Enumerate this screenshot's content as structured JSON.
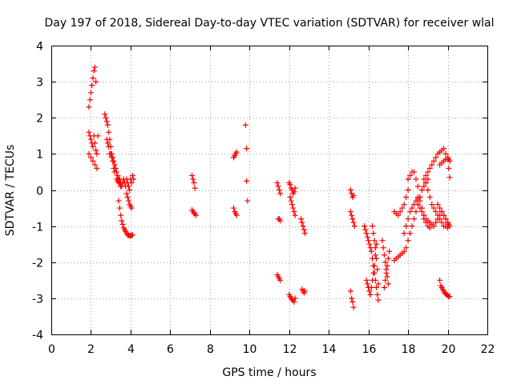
{
  "chart_data": {
    "type": "scatter",
    "title": "Day 197 of 2018, Sidereal Day-to-day VTEC variation (SDTVAR) for receiver wlal",
    "xlabel": "GPS time / hours",
    "ylabel": "SDTVAR / TECUs",
    "xlim": [
      0,
      22
    ],
    "ylim": [
      -4,
      4
    ],
    "xticks": [
      0,
      2,
      4,
      6,
      8,
      10,
      12,
      14,
      16,
      18,
      20,
      22
    ],
    "yticks": [
      -4,
      -3,
      -2,
      -1,
      0,
      1,
      2,
      3,
      4
    ],
    "grid": true,
    "marker": "+",
    "color": "#ff0000",
    "series": [
      {
        "name": "SDTVAR",
        "segments": [
          {
            "x": [
              1.9,
              1.95,
              2.0,
              2.05,
              2.1,
              2.15,
              2.2,
              2.25
            ],
            "y": [
              2.3,
              2.5,
              2.7,
              2.9,
              3.1,
              3.3,
              3.4,
              3.0
            ]
          },
          {
            "x": [
              1.9,
              1.95,
              2.0,
              2.05,
              2.1,
              2.15,
              2.2,
              2.25,
              2.3,
              2.35
            ],
            "y": [
              1.6,
              1.5,
              1.4,
              1.3,
              1.2,
              1.5,
              1.3,
              1.1,
              1.0,
              1.5
            ]
          },
          {
            "x": [
              1.9,
              2.0,
              2.1,
              2.2,
              2.3
            ],
            "y": [
              1.0,
              0.9,
              0.8,
              0.7,
              0.6
            ]
          },
          {
            "x": [
              2.7,
              2.75,
              2.8,
              2.85,
              2.9,
              2.95,
              3.0,
              3.05,
              3.1,
              3.15,
              3.2,
              3.25,
              3.3,
              3.35,
              3.4,
              3.45,
              3.5
            ],
            "y": [
              2.1,
              2.0,
              1.9,
              1.8,
              1.6,
              1.4,
              1.2,
              1.0,
              0.9,
              0.8,
              0.7,
              0.6,
              0.5,
              0.4,
              0.3,
              0.2,
              0.1
            ]
          },
          {
            "x": [
              2.8,
              2.85,
              2.9,
              2.95,
              3.0,
              3.05,
              3.1,
              3.15,
              3.2
            ],
            "y": [
              1.4,
              1.3,
              1.2,
              1.0,
              1.0,
              0.9,
              0.8,
              0.6,
              0.5
            ]
          },
          {
            "x": [
              3.3,
              3.35,
              3.4,
              3.45,
              3.5,
              3.55,
              3.6,
              3.65,
              3.7,
              3.75,
              3.8,
              3.85,
              3.9,
              3.95,
              4.0,
              4.05,
              4.1,
              4.15
            ],
            "y": [
              0.3,
              0.25,
              0.2,
              0.3,
              0.2,
              0.1,
              0.2,
              0.3,
              0.2,
              0.1,
              0.3,
              0.2,
              0.1,
              0.0,
              0.3,
              0.2,
              0.4,
              0.3
            ]
          },
          {
            "x": [
              3.4,
              3.45,
              3.5,
              3.55,
              3.6,
              3.65,
              3.7,
              3.75,
              3.8,
              3.85,
              3.9,
              3.95,
              4.0,
              4.05,
              4.1
            ],
            "y": [
              -0.3,
              -0.5,
              -0.7,
              -0.85,
              -0.95,
              -1.05,
              -1.1,
              -1.15,
              -1.2,
              -1.25,
              -1.25,
              -1.27,
              -1.27,
              -1.25,
              -1.25
            ]
          },
          {
            "x": [
              3.8,
              3.85,
              3.9,
              3.95,
              4.0,
              4.05
            ],
            "y": [
              -0.1,
              -0.2,
              -0.3,
              -0.4,
              -0.45,
              -0.5
            ]
          },
          {
            "x": [
              7.1,
              7.15,
              7.2,
              7.25
            ],
            "y": [
              0.4,
              0.3,
              0.2,
              0.05
            ]
          },
          {
            "x": [
              7.1,
              7.15,
              7.2,
              7.25,
              7.3
            ],
            "y": [
              -0.55,
              -0.6,
              -0.65,
              -0.65,
              -0.7
            ]
          },
          {
            "x": [
              9.2,
              9.25,
              9.3,
              9.35
            ],
            "y": [
              0.9,
              0.95,
              1.0,
              1.05
            ]
          },
          {
            "x": [
              9.2,
              9.25,
              9.3,
              9.35
            ],
            "y": [
              -0.5,
              -0.6,
              -0.65,
              -0.7
            ]
          },
          {
            "x": [
              9.8,
              9.85,
              9.85,
              9.9
            ],
            "y": [
              1.8,
              1.15,
              0.25,
              -0.3
            ]
          },
          {
            "x": [
              11.4,
              11.45,
              11.5,
              11.55
            ],
            "y": [
              0.2,
              0.1,
              0.0,
              -0.1
            ]
          },
          {
            "x": [
              11.45,
              11.5,
              11.55
            ],
            "y": [
              -0.8,
              -0.8,
              -0.85
            ]
          },
          {
            "x": [
              11.4,
              11.45,
              11.5,
              11.55
            ],
            "y": [
              -2.35,
              -2.4,
              -2.45,
              -2.5
            ]
          },
          {
            "x": [
              12.0,
              12.05,
              12.1,
              12.15,
              12.2,
              12.25,
              12.3
            ],
            "y": [
              0.2,
              0.15,
              0.05,
              0.0,
              -0.1,
              -0.05,
              0.05
            ]
          },
          {
            "x": [
              12.05,
              12.1,
              12.15,
              12.2,
              12.25,
              12.3
            ],
            "y": [
              -0.2,
              -0.3,
              -0.4,
              -0.5,
              -0.6,
              -0.7
            ]
          },
          {
            "x": [
              12.0,
              12.05,
              12.1,
              12.15,
              12.2,
              12.25,
              12.3
            ],
            "y": [
              -2.9,
              -2.95,
              -3.0,
              -3.05,
              -3.05,
              -3.1,
              -3.0
            ]
          },
          {
            "x": [
              12.6,
              12.65,
              12.7,
              12.75,
              12.8
            ],
            "y": [
              -0.8,
              -0.9,
              -1.0,
              -1.1,
              -1.2
            ]
          },
          {
            "x": [
              12.65,
              12.7,
              12.75,
              12.8
            ],
            "y": [
              -2.75,
              -2.8,
              -2.85,
              -2.8
            ]
          },
          {
            "x": [
              15.1,
              15.15,
              15.2,
              15.25
            ],
            "y": [
              0.0,
              -0.1,
              -0.2,
              -0.15
            ]
          },
          {
            "x": [
              15.1,
              15.15,
              15.2,
              15.25,
              15.3
            ],
            "y": [
              -0.6,
              -0.7,
              -0.8,
              -0.9,
              -1.0
            ]
          },
          {
            "x": [
              15.1,
              15.15,
              15.2,
              15.25
            ],
            "y": [
              -2.8,
              -3.0,
              -3.1,
              -3.25
            ]
          },
          {
            "x": [
              15.8,
              15.85,
              15.9,
              15.95,
              16.0,
              16.05,
              16.1,
              16.15,
              16.2,
              16.25,
              16.3,
              16.35,
              16.4,
              16.45,
              16.5
            ],
            "y": [
              -1.0,
              -1.1,
              -1.2,
              -1.3,
              -1.4,
              -1.5,
              -1.6,
              -1.7,
              -1.9,
              -2.1,
              -2.3,
              -2.5,
              -2.7,
              -2.9,
              -3.05
            ]
          },
          {
            "x": [
              15.9,
              15.95,
              16.0,
              16.05,
              16.1,
              16.15,
              16.2,
              16.25,
              16.3,
              16.35,
              16.4
            ],
            "y": [
              -2.5,
              -2.6,
              -2.7,
              -2.8,
              -2.9,
              -2.7,
              -2.5,
              -2.3,
              -2.1,
              -1.8,
              -1.5
            ]
          },
          {
            "x": [
              16.2,
              16.25,
              16.3,
              16.35,
              16.4,
              16.45,
              16.5
            ],
            "y": [
              -1.0,
              -1.2,
              -1.4,
              -1.6,
              -1.9,
              -2.2,
              -2.6
            ]
          },
          {
            "x": [
              16.7,
              16.75,
              16.8,
              16.85,
              16.9,
              16.95,
              17.0
            ],
            "y": [
              -1.4,
              -1.6,
              -1.8,
              -2.0,
              -2.2,
              -2.4,
              -2.6
            ]
          },
          {
            "x": [
              16.8,
              16.85,
              16.9,
              16.95,
              17.0,
              17.05
            ],
            "y": [
              -2.7,
              -2.5,
              -2.3,
              -2.1,
              -1.9,
              -1.7
            ]
          },
          {
            "x": [
              17.3,
              17.4,
              17.5,
              17.6,
              17.7,
              17.8,
              17.9,
              18.0,
              18.1,
              18.2,
              18.3,
              18.4,
              18.5,
              18.6,
              18.7,
              18.8,
              18.9,
              19.0
            ],
            "y": [
              -1.95,
              -1.9,
              -1.85,
              -1.8,
              -1.75,
              -1.7,
              -1.6,
              -1.4,
              -1.2,
              -1.0,
              -0.8,
              -0.6,
              -0.4,
              -0.2,
              0.0,
              0.1,
              0.2,
              0.3
            ]
          },
          {
            "x": [
              17.3,
              17.4,
              17.5,
              17.6,
              17.7,
              17.8,
              17.9,
              18.0
            ],
            "y": [
              -0.6,
              -0.65,
              -0.7,
              -0.6,
              -0.5,
              -0.4,
              -0.2,
              0.0
            ]
          },
          {
            "x": [
              18.0,
              18.1,
              18.2,
              18.3,
              18.4,
              18.5,
              18.6,
              18.7,
              18.8
            ],
            "y": [
              0.3,
              0.4,
              0.5,
              0.5,
              0.3,
              0.1,
              -0.2,
              -0.5,
              -0.8
            ]
          },
          {
            "x": [
              17.8,
              17.9,
              18.0,
              18.1,
              18.2,
              18.3,
              18.4,
              18.5
            ],
            "y": [
              -1.2,
              -1.0,
              -0.8,
              -0.6,
              -0.5,
              -0.4,
              -0.3,
              -0.25
            ]
          },
          {
            "x": [
              18.5,
              18.6,
              18.7,
              18.8,
              18.9,
              19.0,
              19.1,
              19.2,
              19.3,
              19.4,
              19.5,
              19.6,
              19.7,
              19.8,
              19.9,
              20.0
            ],
            "y": [
              -0.4,
              -0.5,
              -0.6,
              -0.7,
              -0.8,
              -0.85,
              -0.9,
              -0.95,
              -1.0,
              -0.9,
              -0.8,
              -0.7,
              -0.6,
              -0.7,
              -0.8,
              -0.9
            ]
          },
          {
            "x": [
              18.8,
              18.9,
              19.0,
              19.1,
              19.2,
              19.3,
              19.4,
              19.5,
              19.6,
              19.7,
              19.8,
              19.9,
              20.0
            ],
            "y": [
              0.3,
              0.2,
              0.0,
              -0.2,
              -0.4,
              -0.5,
              -0.6,
              -0.7,
              -0.8,
              -0.9,
              -1.0,
              -1.0,
              -1.05
            ]
          },
          {
            "x": [
              18.5,
              18.6,
              18.7,
              18.8,
              18.9,
              19.0,
              19.1
            ],
            "y": [
              -0.2,
              -0.3,
              -0.5,
              -0.7,
              -0.9,
              -1.0,
              -1.05
            ]
          },
          {
            "x": [
              18.9,
              19.0,
              19.1,
              19.2,
              19.3,
              19.4,
              19.5,
              19.6,
              19.7,
              19.8,
              19.9,
              20.0,
              20.05,
              20.1
            ],
            "y": [
              0.4,
              0.5,
              0.6,
              0.7,
              0.8,
              0.9,
              1.0,
              1.05,
              1.1,
              1.15,
              1.0,
              0.85,
              0.6,
              0.35
            ]
          },
          {
            "x": [
              19.6,
              19.7,
              19.8,
              19.9,
              20.0,
              20.05,
              20.1
            ],
            "y": [
              0.7,
              0.75,
              0.8,
              0.85,
              0.9,
              0.85,
              0.8
            ]
          },
          {
            "x": [
              19.5,
              19.6,
              19.7,
              19.8,
              19.9,
              20.0,
              20.05,
              20.1
            ],
            "y": [
              -0.4,
              -0.5,
              -0.6,
              -0.7,
              -0.8,
              -0.9,
              -0.95,
              -1.0
            ]
          },
          {
            "x": [
              19.6,
              19.65,
              19.7,
              19.75,
              19.8,
              19.85,
              19.9,
              19.95,
              20.0,
              20.05,
              20.1
            ],
            "y": [
              -2.5,
              -2.65,
              -2.7,
              -2.75,
              -2.8,
              -2.85,
              -2.88,
              -2.9,
              -2.92,
              -2.95,
              -2.95
            ]
          }
        ]
      }
    ]
  }
}
